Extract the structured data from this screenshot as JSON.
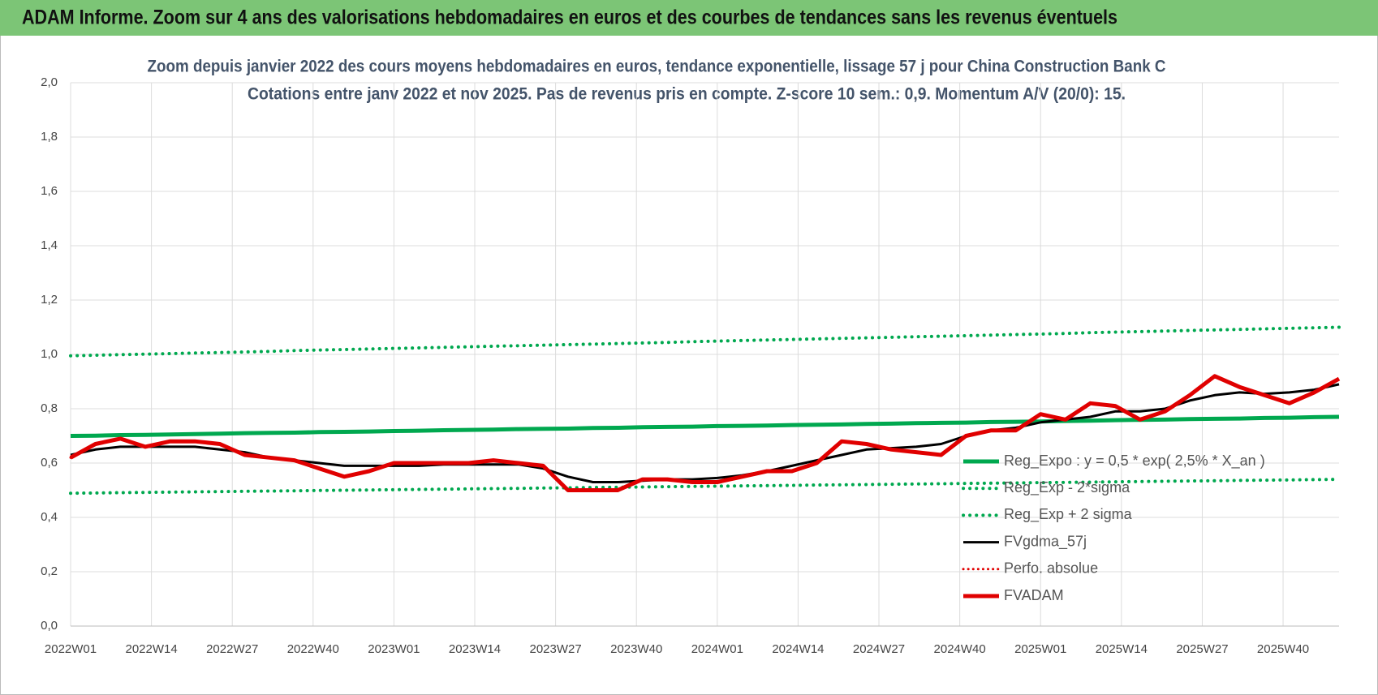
{
  "header": {
    "title": "ADAM Informe. Zoom sur 4 ans des valorisations hebdomadaires en euros et des courbes de tendances sans les revenus éventuels"
  },
  "chart_data": {
    "type": "line",
    "title": "Zoom depuis janvier 2022 des cours moyens hebdomadaires en euros, tendance exponentielle, lissage 57 j pour China Construction Bank C",
    "subtitle": "Cotations entre janv 2022 et nov 2025. Pas de revenus pris en compte. Z-score 10 sem.: 0,9. Momentum A/V (20/0): 15.",
    "x": [
      0,
      4,
      8,
      12,
      16,
      20,
      24,
      28,
      32,
      36,
      40,
      44,
      48,
      52,
      56,
      60,
      64,
      68,
      72,
      76,
      80,
      84,
      88,
      92,
      96,
      100,
      104,
      108,
      112,
      116,
      120,
      124,
      128,
      132,
      136,
      140,
      144,
      148,
      152,
      156,
      160,
      164,
      168,
      172,
      176,
      180,
      184,
      188,
      192,
      196,
      200,
      204
    ],
    "xlim": [
      0,
      204
    ],
    "xticks": [
      {
        "value": 0,
        "label": "2022W01"
      },
      {
        "value": 13,
        "label": "2022W14"
      },
      {
        "value": 26,
        "label": "2022W27"
      },
      {
        "value": 39,
        "label": "2022W40"
      },
      {
        "value": 52,
        "label": "2023W01"
      },
      {
        "value": 65,
        "label": "2023W14"
      },
      {
        "value": 78,
        "label": "2023W27"
      },
      {
        "value": 91,
        "label": "2023W40"
      },
      {
        "value": 104,
        "label": "2024W01"
      },
      {
        "value": 117,
        "label": "2024W14"
      },
      {
        "value": 130,
        "label": "2024W27"
      },
      {
        "value": 143,
        "label": "2024W40"
      },
      {
        "value": 156,
        "label": "2025W01"
      },
      {
        "value": 169,
        "label": "2025W14"
      },
      {
        "value": 182,
        "label": "2025W27"
      },
      {
        "value": 195,
        "label": "2025W40"
      }
    ],
    "ylim": [
      0,
      2
    ],
    "yticks": [
      {
        "value": 0,
        "label": "0,0"
      },
      {
        "value": 0.2,
        "label": "0,2"
      },
      {
        "value": 0.4,
        "label": "0,4"
      },
      {
        "value": 0.6,
        "label": "0,6"
      },
      {
        "value": 0.8,
        "label": "0,8"
      },
      {
        "value": 1,
        "label": "1,0"
      },
      {
        "value": 1.2,
        "label": "1,2"
      },
      {
        "value": 1.4,
        "label": "1,4"
      },
      {
        "value": 1.6,
        "label": "1,6"
      },
      {
        "value": 1.8,
        "label": "1,8"
      },
      {
        "value": 2,
        "label": "2,0"
      }
    ],
    "grid": true,
    "legend": "right",
    "series": [
      {
        "name": "Reg_Expo : y = 0,5 * exp( 2,5% *  X_an )",
        "color": "#00a84f",
        "style": "solid",
        "width": 5,
        "values": [
          0.7,
          0.701,
          0.703,
          0.704,
          0.705,
          0.707,
          0.708,
          0.71,
          0.711,
          0.712,
          0.714,
          0.715,
          0.716,
          0.718,
          0.719,
          0.721,
          0.722,
          0.723,
          0.725,
          0.726,
          0.727,
          0.729,
          0.73,
          0.732,
          0.733,
          0.734,
          0.736,
          0.737,
          0.738,
          0.74,
          0.741,
          0.742,
          0.744,
          0.745,
          0.747,
          0.748,
          0.749,
          0.751,
          0.752,
          0.753,
          0.755,
          0.756,
          0.758,
          0.759,
          0.76,
          0.762,
          0.763,
          0.764,
          0.766,
          0.767,
          0.769,
          0.77
        ]
      },
      {
        "name": "Reg_Exp - 2*sigma",
        "color": "#00a84f",
        "style": "dotted",
        "width": 4,
        "values": [
          0.489,
          0.49,
          0.491,
          0.492,
          0.493,
          0.494,
          0.495,
          0.496,
          0.497,
          0.498,
          0.499,
          0.5,
          0.501,
          0.502,
          0.503,
          0.504,
          0.505,
          0.506,
          0.507,
          0.508,
          0.509,
          0.51,
          0.511,
          0.512,
          0.513,
          0.514,
          0.515,
          0.516,
          0.517,
          0.518,
          0.519,
          0.52,
          0.521,
          0.522,
          0.523,
          0.524,
          0.525,
          0.526,
          0.527,
          0.528,
          0.529,
          0.53,
          0.531,
          0.532,
          0.533,
          0.534,
          0.535,
          0.536,
          0.537,
          0.538,
          0.539,
          0.54
        ]
      },
      {
        "name": "Reg_Exp + 2 sigma",
        "color": "#00a84f",
        "style": "dotted",
        "width": 4,
        "values": [
          0.995,
          0.997,
          0.999,
          1.001,
          1.003,
          1.005,
          1.007,
          1.009,
          1.011,
          1.014,
          1.016,
          1.018,
          1.02,
          1.022,
          1.024,
          1.026,
          1.028,
          1.03,
          1.032,
          1.034,
          1.036,
          1.038,
          1.04,
          1.042,
          1.044,
          1.047,
          1.049,
          1.051,
          1.053,
          1.055,
          1.057,
          1.059,
          1.061,
          1.063,
          1.065,
          1.067,
          1.069,
          1.071,
          1.073,
          1.075,
          1.077,
          1.08,
          1.082,
          1.084,
          1.086,
          1.088,
          1.09,
          1.092,
          1.094,
          1.096,
          1.098,
          1.1
        ]
      },
      {
        "name": "FVgdma_57j",
        "color": "#000000",
        "style": "solid",
        "width": 3,
        "values": [
          0.63,
          0.65,
          0.66,
          0.66,
          0.66,
          0.66,
          0.65,
          0.64,
          0.62,
          0.61,
          0.6,
          0.59,
          0.59,
          0.59,
          0.59,
          0.595,
          0.595,
          0.595,
          0.595,
          0.58,
          0.55,
          0.53,
          0.53,
          0.535,
          0.54,
          0.54,
          0.545,
          0.555,
          0.57,
          0.59,
          0.61,
          0.63,
          0.65,
          0.655,
          0.66,
          0.67,
          0.7,
          0.72,
          0.73,
          0.75,
          0.76,
          0.77,
          0.79,
          0.79,
          0.8,
          0.83,
          0.85,
          0.86,
          0.855,
          0.86,
          0.87,
          0.89
        ]
      },
      {
        "name": "Perfo. absolue",
        "color": "#e00000",
        "style": "dotted",
        "width": 3,
        "values": [
          0.62,
          0.67,
          0.69,
          0.66,
          0.68,
          0.68,
          0.67,
          0.63,
          0.62,
          0.61,
          0.58,
          0.55,
          0.57,
          0.6,
          0.6,
          0.6,
          0.6,
          0.61,
          0.6,
          0.59,
          0.5,
          0.5,
          0.5,
          0.54,
          0.54,
          0.53,
          0.53,
          0.55,
          0.57,
          0.57,
          0.6,
          0.68,
          0.67,
          0.65,
          0.64,
          0.63,
          0.7,
          0.72,
          0.72,
          0.78,
          0.76,
          0.82,
          0.81,
          0.76,
          0.79,
          0.85,
          0.92,
          0.88,
          0.85,
          0.82,
          0.86,
          0.91
        ]
      },
      {
        "name": "FVADAM",
        "color": "#e00000",
        "style": "solid",
        "width": 5,
        "values": [
          0.62,
          0.67,
          0.69,
          0.66,
          0.68,
          0.68,
          0.67,
          0.63,
          0.62,
          0.61,
          0.58,
          0.55,
          0.57,
          0.6,
          0.6,
          0.6,
          0.6,
          0.61,
          0.6,
          0.59,
          0.5,
          0.5,
          0.5,
          0.54,
          0.54,
          0.53,
          0.53,
          0.55,
          0.57,
          0.57,
          0.6,
          0.68,
          0.67,
          0.65,
          0.64,
          0.63,
          0.7,
          0.72,
          0.72,
          0.78,
          0.76,
          0.82,
          0.81,
          0.76,
          0.79,
          0.85,
          0.92,
          0.88,
          0.85,
          0.82,
          0.86,
          0.91
        ]
      }
    ]
  }
}
